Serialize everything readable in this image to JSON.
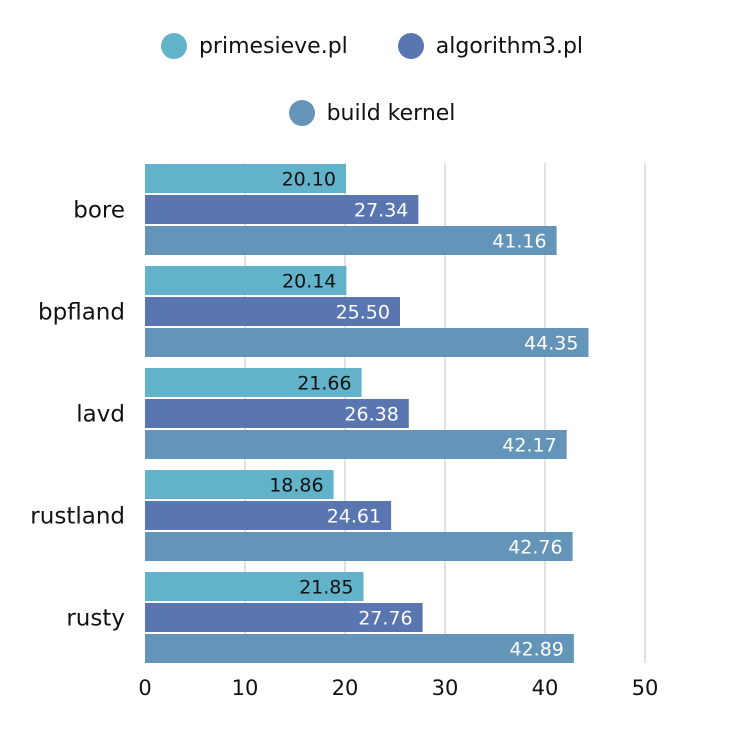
{
  "chart_data": {
    "type": "bar",
    "orientation": "horizontal",
    "categories": [
      "bore",
      "bpfland",
      "lavd",
      "rustland",
      "rusty"
    ],
    "series": [
      {
        "name": "primesieve.pl",
        "color": "#62b3c9",
        "label_color": "#111111",
        "values": [
          20.1,
          20.14,
          21.66,
          18.86,
          21.85
        ]
      },
      {
        "name": "algorithm3.pl",
        "color": "#5a76b0",
        "label_color": "#ffffff",
        "values": [
          27.34,
          25.5,
          26.38,
          24.61,
          27.76
        ]
      },
      {
        "name": "build kernel",
        "color": "#6495b9",
        "label_color": "#ffffff",
        "values": [
          41.16,
          44.35,
          42.17,
          42.76,
          42.89
        ]
      }
    ],
    "value_labels": [
      [
        "20.10",
        "27.34",
        "41.16"
      ],
      [
        "20.14",
        "25.50",
        "44.35"
      ],
      [
        "21.66",
        "26.38",
        "42.17"
      ],
      [
        "18.86",
        "24.61",
        "42.76"
      ],
      [
        "21.85",
        "27.76",
        "42.89"
      ]
    ],
    "xticks": [
      "0",
      "10",
      "20",
      "30",
      "40",
      "50"
    ],
    "xlim": [
      0,
      50
    ],
    "grid": "vertical",
    "legend_position": "top",
    "title": "",
    "xlabel": "",
    "ylabel": ""
  },
  "legend": {
    "row1": [
      {
        "label": "primesieve.pl",
        "color": "#62b3c9"
      },
      {
        "label": "algorithm3.pl",
        "color": "#5a76b0"
      }
    ],
    "row2": [
      {
        "label": "build kernel",
        "color": "#6495b9"
      }
    ]
  }
}
